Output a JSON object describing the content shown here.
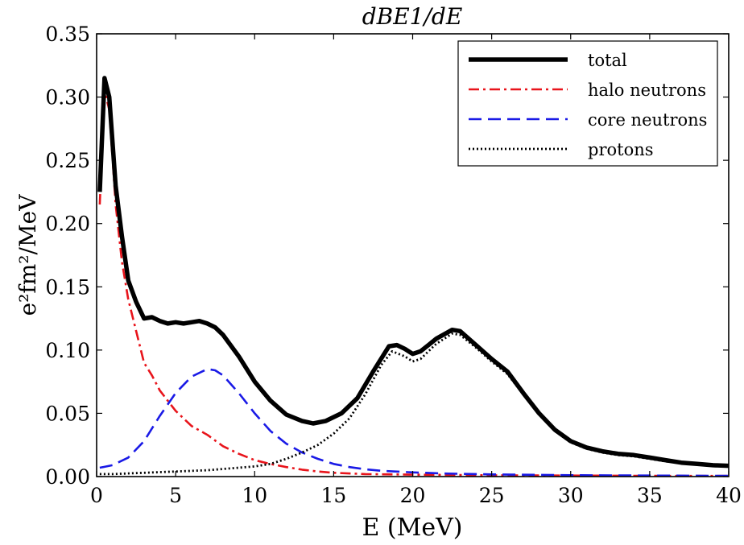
{
  "chart_data": {
    "type": "line",
    "title": "dBE1/dE",
    "xlabel": "E (MeV)",
    "ylabel": "e²fm²/MeV",
    "xlim": [
      0,
      40
    ],
    "ylim": [
      0,
      0.35
    ],
    "x_ticks": [
      0,
      5,
      10,
      15,
      20,
      25,
      30,
      35,
      40
    ],
    "y_ticks": [
      0.0,
      0.05,
      0.1,
      0.15,
      0.2,
      0.25,
      0.3,
      0.35
    ],
    "x_tick_labels": [
      "0",
      "5",
      "10",
      "15",
      "20",
      "25",
      "30",
      "35",
      "40"
    ],
    "y_tick_labels": [
      "0.00",
      "0.05",
      "0.10",
      "0.15",
      "0.20",
      "0.25",
      "0.30",
      "0.35"
    ],
    "grid": false,
    "legend_position": "top-right",
    "series": [
      {
        "name": "total",
        "color": "#000000",
        "style": "solid-thick",
        "points": [
          [
            0.2,
            0.225
          ],
          [
            0.5,
            0.315
          ],
          [
            0.8,
            0.3
          ],
          [
            1.2,
            0.23
          ],
          [
            1.6,
            0.19
          ],
          [
            2.0,
            0.155
          ],
          [
            2.5,
            0.138
          ],
          [
            3.0,
            0.125
          ],
          [
            3.5,
            0.126
          ],
          [
            4.0,
            0.123
          ],
          [
            4.5,
            0.121
          ],
          [
            5.0,
            0.122
          ],
          [
            5.5,
            0.121
          ],
          [
            6.0,
            0.122
          ],
          [
            6.5,
            0.123
          ],
          [
            7.0,
            0.121
          ],
          [
            7.5,
            0.118
          ],
          [
            8.0,
            0.112
          ],
          [
            9.0,
            0.095
          ],
          [
            10.0,
            0.075
          ],
          [
            11.0,
            0.06
          ],
          [
            12.0,
            0.049
          ],
          [
            13.0,
            0.044
          ],
          [
            13.7,
            0.042
          ],
          [
            14.5,
            0.044
          ],
          [
            15.5,
            0.05
          ],
          [
            16.5,
            0.062
          ],
          [
            17.5,
            0.083
          ],
          [
            18.5,
            0.103
          ],
          [
            19.0,
            0.104
          ],
          [
            19.5,
            0.101
          ],
          [
            20.0,
            0.097
          ],
          [
            20.5,
            0.099
          ],
          [
            21.0,
            0.104
          ],
          [
            21.5,
            0.109
          ],
          [
            22.5,
            0.116
          ],
          [
            23.0,
            0.115
          ],
          [
            24.0,
            0.104
          ],
          [
            25.0,
            0.093
          ],
          [
            26.0,
            0.083
          ],
          [
            27.0,
            0.066
          ],
          [
            28.0,
            0.05
          ],
          [
            29.0,
            0.037
          ],
          [
            30.0,
            0.028
          ],
          [
            31.0,
            0.023
          ],
          [
            32.0,
            0.02
          ],
          [
            33.0,
            0.018
          ],
          [
            34.0,
            0.017
          ],
          [
            35.0,
            0.015
          ],
          [
            36.0,
            0.013
          ],
          [
            37.0,
            0.011
          ],
          [
            38.0,
            0.01
          ],
          [
            39.0,
            0.009
          ],
          [
            40.0,
            0.0085
          ]
        ]
      },
      {
        "name": "halo neutrons",
        "color": "#e8141b",
        "style": "dashdot",
        "points": [
          [
            0.2,
            0.215
          ],
          [
            0.5,
            0.305
          ],
          [
            0.8,
            0.29
          ],
          [
            1.2,
            0.215
          ],
          [
            1.6,
            0.17
          ],
          [
            2.0,
            0.14
          ],
          [
            2.5,
            0.115
          ],
          [
            3.0,
            0.09
          ],
          [
            3.5,
            0.08
          ],
          [
            4.0,
            0.068
          ],
          [
            4.5,
            0.06
          ],
          [
            5.0,
            0.052
          ],
          [
            5.5,
            0.046
          ],
          [
            6.0,
            0.04
          ],
          [
            7.0,
            0.033
          ],
          [
            8.0,
            0.024
          ],
          [
            9.0,
            0.018
          ],
          [
            10.0,
            0.013
          ],
          [
            11.0,
            0.01
          ],
          [
            12.0,
            0.0075
          ],
          [
            13.0,
            0.0055
          ],
          [
            14.0,
            0.004
          ],
          [
            15.0,
            0.003
          ],
          [
            17.0,
            0.002
          ],
          [
            20.0,
            0.0015
          ],
          [
            25.0,
            0.001
          ],
          [
            30.0,
            0.0008
          ],
          [
            35.0,
            0.0006
          ],
          [
            40.0,
            0.0005
          ]
        ]
      },
      {
        "name": "core neutrons",
        "color": "#1a1ae6",
        "style": "dashed",
        "points": [
          [
            0.2,
            0.007
          ],
          [
            1.0,
            0.009
          ],
          [
            2.0,
            0.015
          ],
          [
            3.0,
            0.028
          ],
          [
            4.0,
            0.048
          ],
          [
            5.0,
            0.066
          ],
          [
            6.0,
            0.079
          ],
          [
            7.0,
            0.085
          ],
          [
            7.5,
            0.084
          ],
          [
            8.0,
            0.08
          ],
          [
            9.0,
            0.066
          ],
          [
            10.0,
            0.05
          ],
          [
            11.0,
            0.036
          ],
          [
            12.0,
            0.026
          ],
          [
            13.0,
            0.019
          ],
          [
            14.0,
            0.014
          ],
          [
            15.0,
            0.01
          ],
          [
            16.0,
            0.0075
          ],
          [
            17.0,
            0.0058
          ],
          [
            18.0,
            0.0046
          ],
          [
            20.0,
            0.0033
          ],
          [
            22.0,
            0.0024
          ],
          [
            25.0,
            0.0017
          ],
          [
            30.0,
            0.0011
          ],
          [
            35.0,
            0.0008
          ],
          [
            40.0,
            0.0006
          ]
        ]
      },
      {
        "name": "protons",
        "color": "#000000",
        "style": "dotted",
        "points": [
          [
            0.2,
            0.002
          ],
          [
            1.0,
            0.002
          ],
          [
            3.0,
            0.003
          ],
          [
            5.0,
            0.004
          ],
          [
            7.0,
            0.005
          ],
          [
            9.0,
            0.007
          ],
          [
            10.0,
            0.008
          ],
          [
            11.0,
            0.01
          ],
          [
            12.0,
            0.014
          ],
          [
            13.0,
            0.019
          ],
          [
            14.0,
            0.025
          ],
          [
            15.0,
            0.034
          ],
          [
            16.0,
            0.046
          ],
          [
            17.0,
            0.065
          ],
          [
            18.0,
            0.088
          ],
          [
            18.7,
            0.099
          ],
          [
            19.5,
            0.095
          ],
          [
            20.0,
            0.091
          ],
          [
            20.5,
            0.093
          ],
          [
            21.0,
            0.099
          ],
          [
            21.5,
            0.105
          ],
          [
            22.5,
            0.113
          ],
          [
            23.0,
            0.112
          ],
          [
            24.0,
            0.102
          ],
          [
            25.0,
            0.091
          ],
          [
            26.0,
            0.081
          ],
          [
            27.0,
            0.065
          ],
          [
            28.0,
            0.049
          ],
          [
            29.0,
            0.036
          ],
          [
            30.0,
            0.027
          ],
          [
            31.0,
            0.022
          ],
          [
            32.0,
            0.019
          ],
          [
            33.0,
            0.017
          ],
          [
            34.0,
            0.016
          ],
          [
            35.0,
            0.014
          ],
          [
            36.0,
            0.012
          ],
          [
            37.0,
            0.011
          ],
          [
            38.0,
            0.0095
          ],
          [
            39.0,
            0.0088
          ],
          [
            40.0,
            0.008
          ]
        ]
      }
    ]
  }
}
